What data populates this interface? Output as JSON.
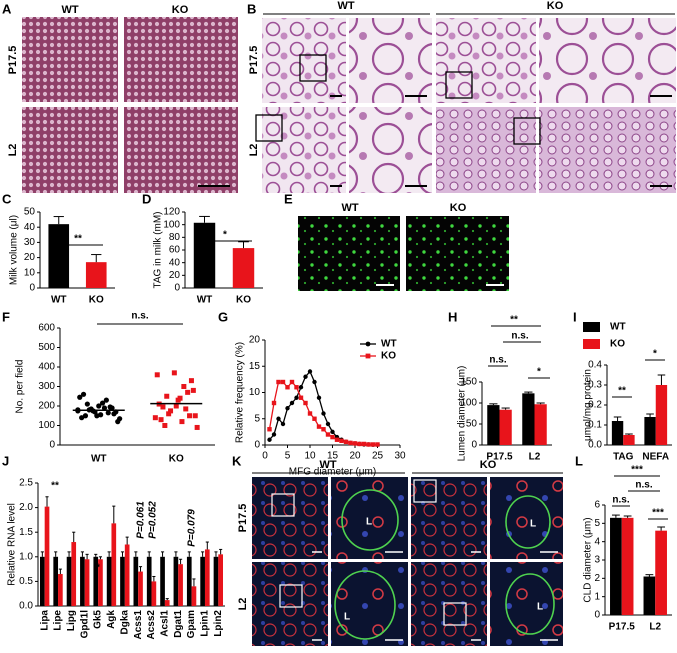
{
  "image_panels": {
    "A": {
      "letter": "A",
      "columns": [
        "WT",
        "KO"
      ],
      "rows": [
        "P17.5",
        "L2"
      ]
    },
    "B": {
      "letter": "B",
      "columns": [
        "WT",
        "KO"
      ],
      "rows": [
        "P17.5",
        "L2"
      ]
    },
    "E": {
      "letter": "E",
      "columns": [
        "WT",
        "KO"
      ]
    },
    "K": {
      "letter": "K",
      "columns": [
        "WT",
        "KO"
      ],
      "rows": [
        "P17.5",
        "L2"
      ],
      "lumen_labels": [
        "L",
        "L",
        "L",
        "L"
      ]
    }
  },
  "chart_data": [
    {
      "panel": "C",
      "type": "bar",
      "categories": [
        "WT",
        "KO"
      ],
      "values": [
        42,
        17
      ],
      "errors": [
        5,
        5
      ],
      "colors": [
        "#000000",
        "#e8141b"
      ],
      "ylabel": "Milk volume (μl)",
      "ylim": [
        0,
        50
      ],
      "yticks": [
        0,
        10,
        20,
        30,
        40,
        50
      ],
      "annotations": [
        "**"
      ]
    },
    {
      "panel": "D",
      "type": "bar",
      "categories": [
        "WT",
        "KO"
      ],
      "values": [
        103,
        63
      ],
      "errors": [
        10,
        10
      ],
      "colors": [
        "#000000",
        "#e8141b"
      ],
      "ylabel": "TAG in milk (mM)",
      "ylim": [
        0,
        120
      ],
      "yticks": [
        0,
        20,
        40,
        60,
        80,
        100,
        120
      ],
      "annotations": [
        "*"
      ]
    },
    {
      "panel": "F",
      "type": "strip",
      "categories": [
        "WT",
        "KO"
      ],
      "values": [
        [
          175,
          190,
          210,
          160,
          150,
          245,
          230,
          180,
          170,
          200,
          140,
          165,
          185,
          120,
          155,
          260,
          195,
          175,
          135,
          215,
          150,
          190,
          170,
          180
        ],
        [
          140,
          120,
          100,
          330,
          370,
          360,
          300,
          250,
          280,
          200,
          210,
          185,
          160,
          150,
          230,
          130,
          270,
          175,
          90,
          240,
          195,
          150
        ]
      ],
      "means": [
        178,
        212
      ],
      "colors": [
        "#000000",
        "#e8141b"
      ],
      "ylabel": "No. per field",
      "ylim": [
        0,
        600
      ],
      "yticks": [
        0,
        100,
        200,
        300,
        400,
        500,
        600
      ],
      "annotations": [
        "n.s."
      ]
    },
    {
      "panel": "G",
      "type": "line",
      "x": [
        1,
        2,
        3,
        4,
        5,
        6,
        7,
        8,
        9,
        10,
        11,
        12,
        13,
        14,
        15,
        16,
        17,
        18,
        19,
        20,
        21,
        22,
        23,
        24,
        25
      ],
      "series": [
        {
          "name": "WT",
          "color": "#000000",
          "values": [
            1,
            2,
            5,
            4,
            7,
            8,
            9,
            11,
            13,
            14,
            12,
            9,
            6,
            4,
            2.5,
            1.5,
            1,
            0.6,
            0.4,
            0.3,
            0.2,
            0.1,
            0.1,
            0.05,
            0.05
          ]
        },
        {
          "name": "KO",
          "color": "#e8141b",
          "values": [
            3,
            8,
            12,
            12,
            11,
            12,
            11,
            9,
            8,
            6,
            5,
            3.5,
            3,
            2,
            1.5,
            1,
            0.8,
            0.6,
            0.4,
            0.3,
            0.2,
            0.2,
            0.1,
            0.1,
            0.1
          ]
        }
      ],
      "xlabel": "MFG diameter (μm)",
      "ylabel": "Relative frequency (%)",
      "xlim": [
        0,
        30
      ],
      "xticks": [
        0,
        5,
        10,
        15,
        20,
        25,
        30
      ],
      "ylim": [
        0,
        20
      ],
      "yticks": [
        0,
        5,
        10,
        15,
        20
      ],
      "legend": "upper right"
    },
    {
      "panel": "H",
      "type": "grouped_bar",
      "categories": [
        "P17.5",
        "L2"
      ],
      "series": [
        {
          "name": "WT",
          "color": "#000000",
          "values": [
            95,
            123
          ],
          "errors": [
            3,
            3
          ]
        },
        {
          "name": "KO",
          "color": "#e8141b",
          "values": [
            84,
            97
          ],
          "errors": [
            4,
            3
          ]
        }
      ],
      "ylabel": "Lumen diameter (μm)",
      "ylim": [
        0,
        150
      ],
      "yticks": [
        0,
        50,
        100,
        150
      ],
      "annotations": [
        "**",
        "n.s.",
        "n.s.",
        "*"
      ]
    },
    {
      "panel": "I",
      "type": "grouped_bar",
      "categories": [
        "TAG",
        "NEFA"
      ],
      "series": [
        {
          "name": "WT",
          "color": "#000000",
          "values": [
            0.12,
            0.14
          ],
          "errors": [
            0.02,
            0.015
          ]
        },
        {
          "name": "KO",
          "color": "#e8141b",
          "values": [
            0.05,
            0.3
          ],
          "errors": [
            0.005,
            0.05
          ]
        }
      ],
      "ylabel": "μmol/mg protein",
      "ylim": [
        0,
        0.4
      ],
      "yticks": [
        {
          "value": 0,
          "label": "0.0"
        },
        0.1,
        0.2,
        0.3,
        0.4
      ],
      "legend": "upper left",
      "annotations": [
        "**",
        "*"
      ]
    },
    {
      "panel": "J",
      "type": "grouped_bar",
      "categories": [
        "Lipa",
        "Lipe",
        "Lipg",
        "Gpd1l",
        "Gk5",
        "Agk",
        "Dgka",
        "Acss1",
        "Acss2",
        "Acsl1",
        "Dgat1",
        "Gpam",
        "Lpin1",
        "Lpin2"
      ],
      "series": [
        {
          "name": "WT",
          "color": "#000000",
          "values": [
            1,
            1,
            1,
            1,
            1,
            1,
            1,
            1,
            1,
            1,
            1,
            1,
            1,
            1
          ],
          "errors": [
            0.1,
            0.1,
            0.1,
            0.1,
            0.05,
            0.1,
            0.1,
            0.1,
            0.1,
            0.1,
            0.1,
            0.1,
            0.1,
            0.1
          ]
        },
        {
          "name": "KO",
          "color": "#e8141b",
          "values": [
            2.02,
            0.65,
            1.3,
            0.95,
            0.95,
            1.68,
            1.25,
            0.7,
            0.5,
            0.12,
            0.85,
            0.4,
            1.15,
            1.05
          ],
          "errors": [
            0.2,
            0.1,
            0.2,
            0.1,
            0.05,
            0.35,
            0.15,
            0.1,
            0.1,
            0.03,
            0.1,
            0.15,
            0.15,
            0.1
          ]
        }
      ],
      "ylabel": "Relative RNA level",
      "ylim": [
        0,
        2.5
      ],
      "yticks": [
        {
          "value": 0,
          "label": "0.0"
        },
        0.5,
        {
          "value": 1,
          "label": "1.0"
        },
        1.5,
        {
          "value": 2,
          "label": "2.0"
        },
        2.5
      ],
      "annotations": [
        "**",
        "*",
        "P=0.061",
        "P=0.052",
        "P=0.079"
      ]
    },
    {
      "panel": "L",
      "type": "grouped_bar",
      "categories": [
        "P17.5",
        "L2"
      ],
      "series": [
        {
          "name": "WT",
          "color": "#000000",
          "values": [
            5.3,
            2.1
          ],
          "errors": [
            0.15,
            0.1
          ]
        },
        {
          "name": "KO",
          "color": "#e8141b",
          "values": [
            5.3,
            4.6
          ],
          "errors": [
            0.1,
            0.2
          ]
        }
      ],
      "ylabel": "CLD diameter (μm)",
      "ylim": [
        0,
        6
      ],
      "yticks": [
        0,
        1,
        2,
        3,
        4,
        5,
        6
      ],
      "annotations": [
        "***",
        "n.s.",
        "n.s.",
        "***"
      ]
    }
  ]
}
